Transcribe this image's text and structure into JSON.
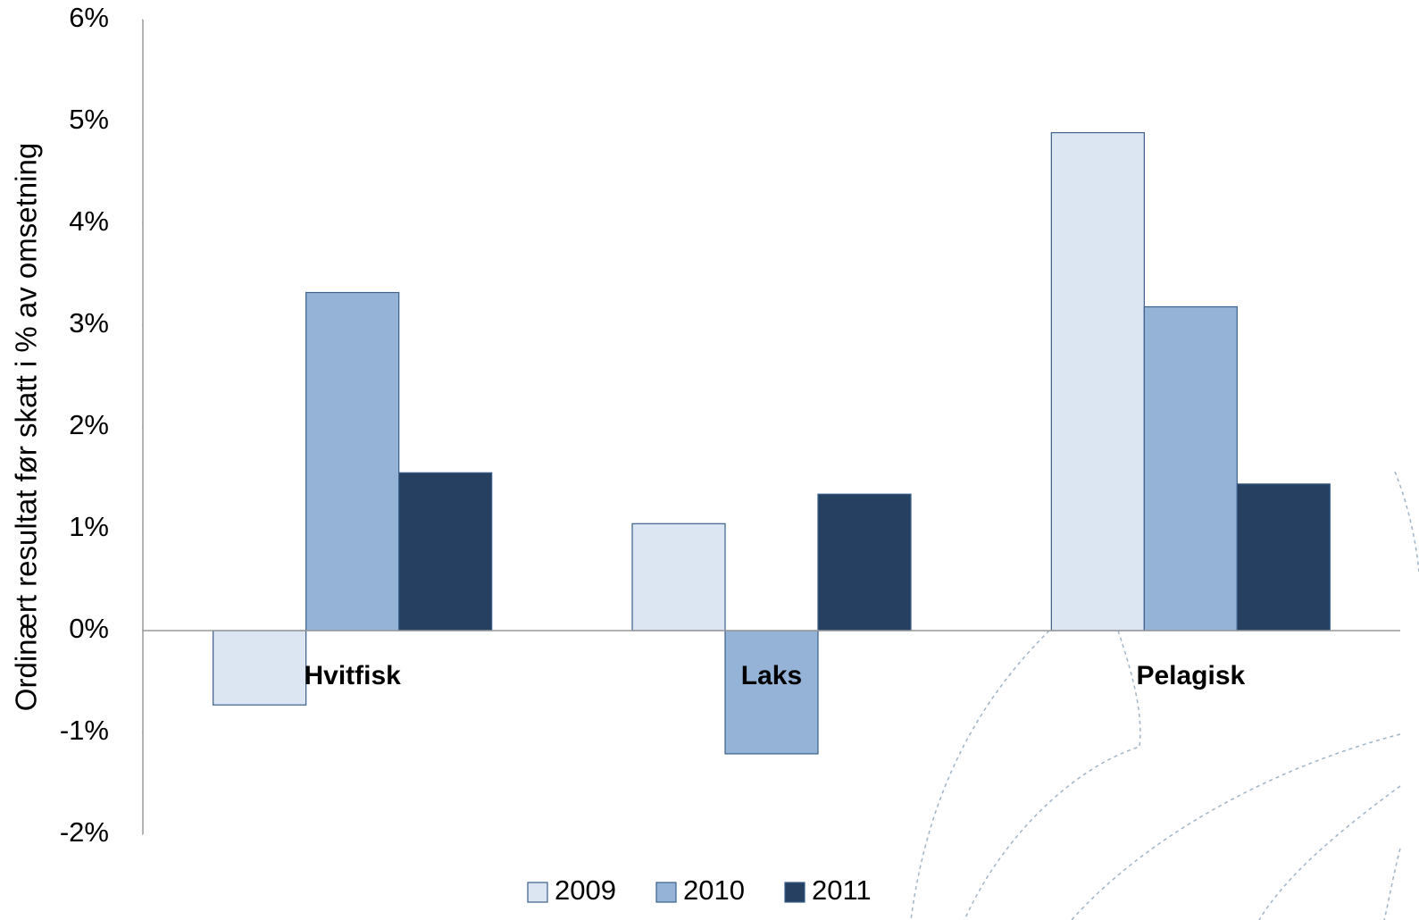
{
  "chart_data": {
    "type": "bar",
    "y_label": "Ordinært resultat før skatt i % av omsetning",
    "categories": [
      "Hvitfisk",
      "Laks",
      "Pelagisk"
    ],
    "series": [
      {
        "name": "2009",
        "color": "#dce6f2",
        "values": [
          -0.73,
          1.05,
          4.89
        ]
      },
      {
        "name": "2010",
        "color": "#95b3d7",
        "values": [
          3.32,
          -1.21,
          3.18
        ]
      },
      {
        "name": "2011",
        "color": "#254061",
        "values": [
          1.55,
          1.34,
          1.44
        ]
      }
    ],
    "ylim": [
      -2,
      6
    ],
    "yticks": [
      {
        "value": -2,
        "label": "-2%"
      },
      {
        "value": -1,
        "label": "-1%"
      },
      {
        "value": 0,
        "label": "0%"
      },
      {
        "value": 1,
        "label": "1%"
      },
      {
        "value": 2,
        "label": "2%"
      },
      {
        "value": 3,
        "label": "3%"
      },
      {
        "value": 4,
        "label": "4%"
      },
      {
        "value": 5,
        "label": "5%"
      },
      {
        "value": 6,
        "label": "6%"
      }
    ],
    "grid": false
  }
}
